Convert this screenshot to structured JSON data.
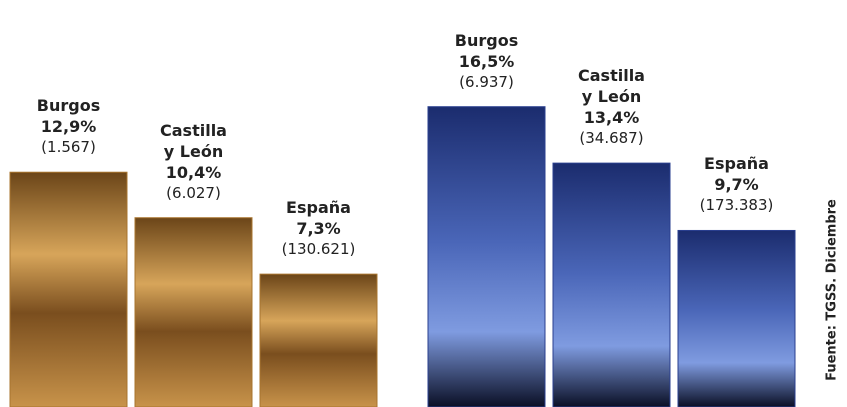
{
  "chart_data": [
    {
      "type": "bar",
      "categories": [
        "Burgos",
        "Castilla y León",
        "España"
      ],
      "values": [
        12.9,
        10.4,
        7.3
      ],
      "value_labels": [
        "12,9%",
        "10,4%",
        "7,3%"
      ],
      "counts": [
        1567,
        6027,
        130621
      ],
      "count_labels": [
        "(1.567)",
        "(6.027)",
        "(130.621)"
      ],
      "color": "#a8742e"
    },
    {
      "type": "bar",
      "categories": [
        "Burgos",
        "Castilla y León",
        "España"
      ],
      "values": [
        16.5,
        13.4,
        9.7
      ],
      "value_labels": [
        "16,5%",
        "13,4%",
        "9,7%"
      ],
      "counts": [
        6937,
        34687,
        173383
      ],
      "count_labels": [
        "(6.937)",
        "(34.687)",
        "(173.383)"
      ],
      "color": "#2a3f8f"
    }
  ],
  "source": "Fuente: TGSS. Diciembre"
}
